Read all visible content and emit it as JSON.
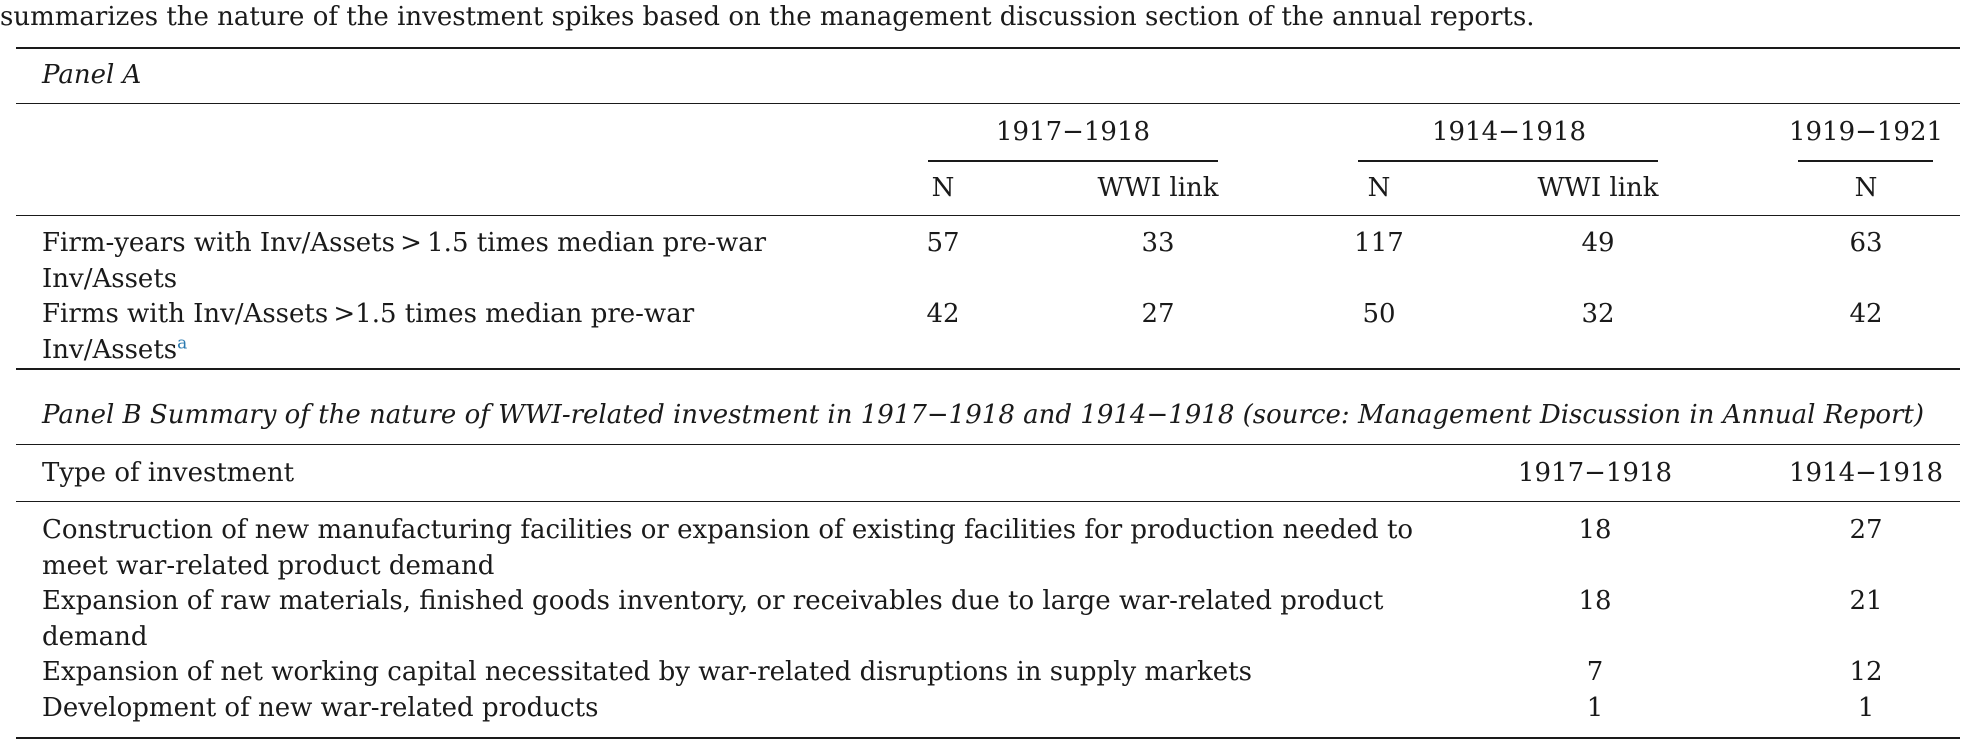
{
  "caption": "summarizes the nature of the investment spikes based on the management discussion section of the annual reports.",
  "panel_a": {
    "title": "Panel A",
    "groups": [
      {
        "label": "1917−1918",
        "cols": [
          "N",
          "WWI link"
        ]
      },
      {
        "label": "1914−1918",
        "cols": [
          "N",
          "WWI link"
        ]
      },
      {
        "label": "1919−1921",
        "cols": [
          "N"
        ]
      }
    ],
    "rows": [
      {
        "label_line1": "Firm-years with Inv/Assets > 1.5 times median pre-war",
        "label_line2": "Inv/Assets",
        "values": [
          "57",
          "33",
          "117",
          "49",
          "63"
        ]
      },
      {
        "label_line1": "Firms with Inv/Assets >1.5 times median pre-war",
        "label_line2": "Inv/Assets",
        "footnote": "a",
        "values": [
          "42",
          "27",
          "50",
          "32",
          "42"
        ]
      }
    ]
  },
  "panel_b": {
    "title": "Panel B Summary of the nature of WWI-related investment in 1917−1918 and 1914−1918 (source: Management Discussion in Annual Report)",
    "header": {
      "type": "Type of investment",
      "col1": "1917−1918",
      "col2": "1914−1918"
    },
    "rows": [
      {
        "label_line1": "Construction of new manufacturing facilities or expansion of existing facilities for production needed to",
        "label_line2": "meet war-related product demand",
        "values": [
          "18",
          "27"
        ]
      },
      {
        "label_line1": "Expansion of raw materials, finished goods inventory, or receivables due to large war-related product",
        "label_line2": "demand",
        "values": [
          "18",
          "21"
        ]
      },
      {
        "label_line1": "Expansion of net working capital necessitated by war-related disruptions in supply markets",
        "label_line2": "",
        "values": [
          "7",
          "12"
        ]
      },
      {
        "label_line1": "Development of new war-related products",
        "label_line2": "",
        "values": [
          "1",
          "1"
        ]
      }
    ]
  }
}
